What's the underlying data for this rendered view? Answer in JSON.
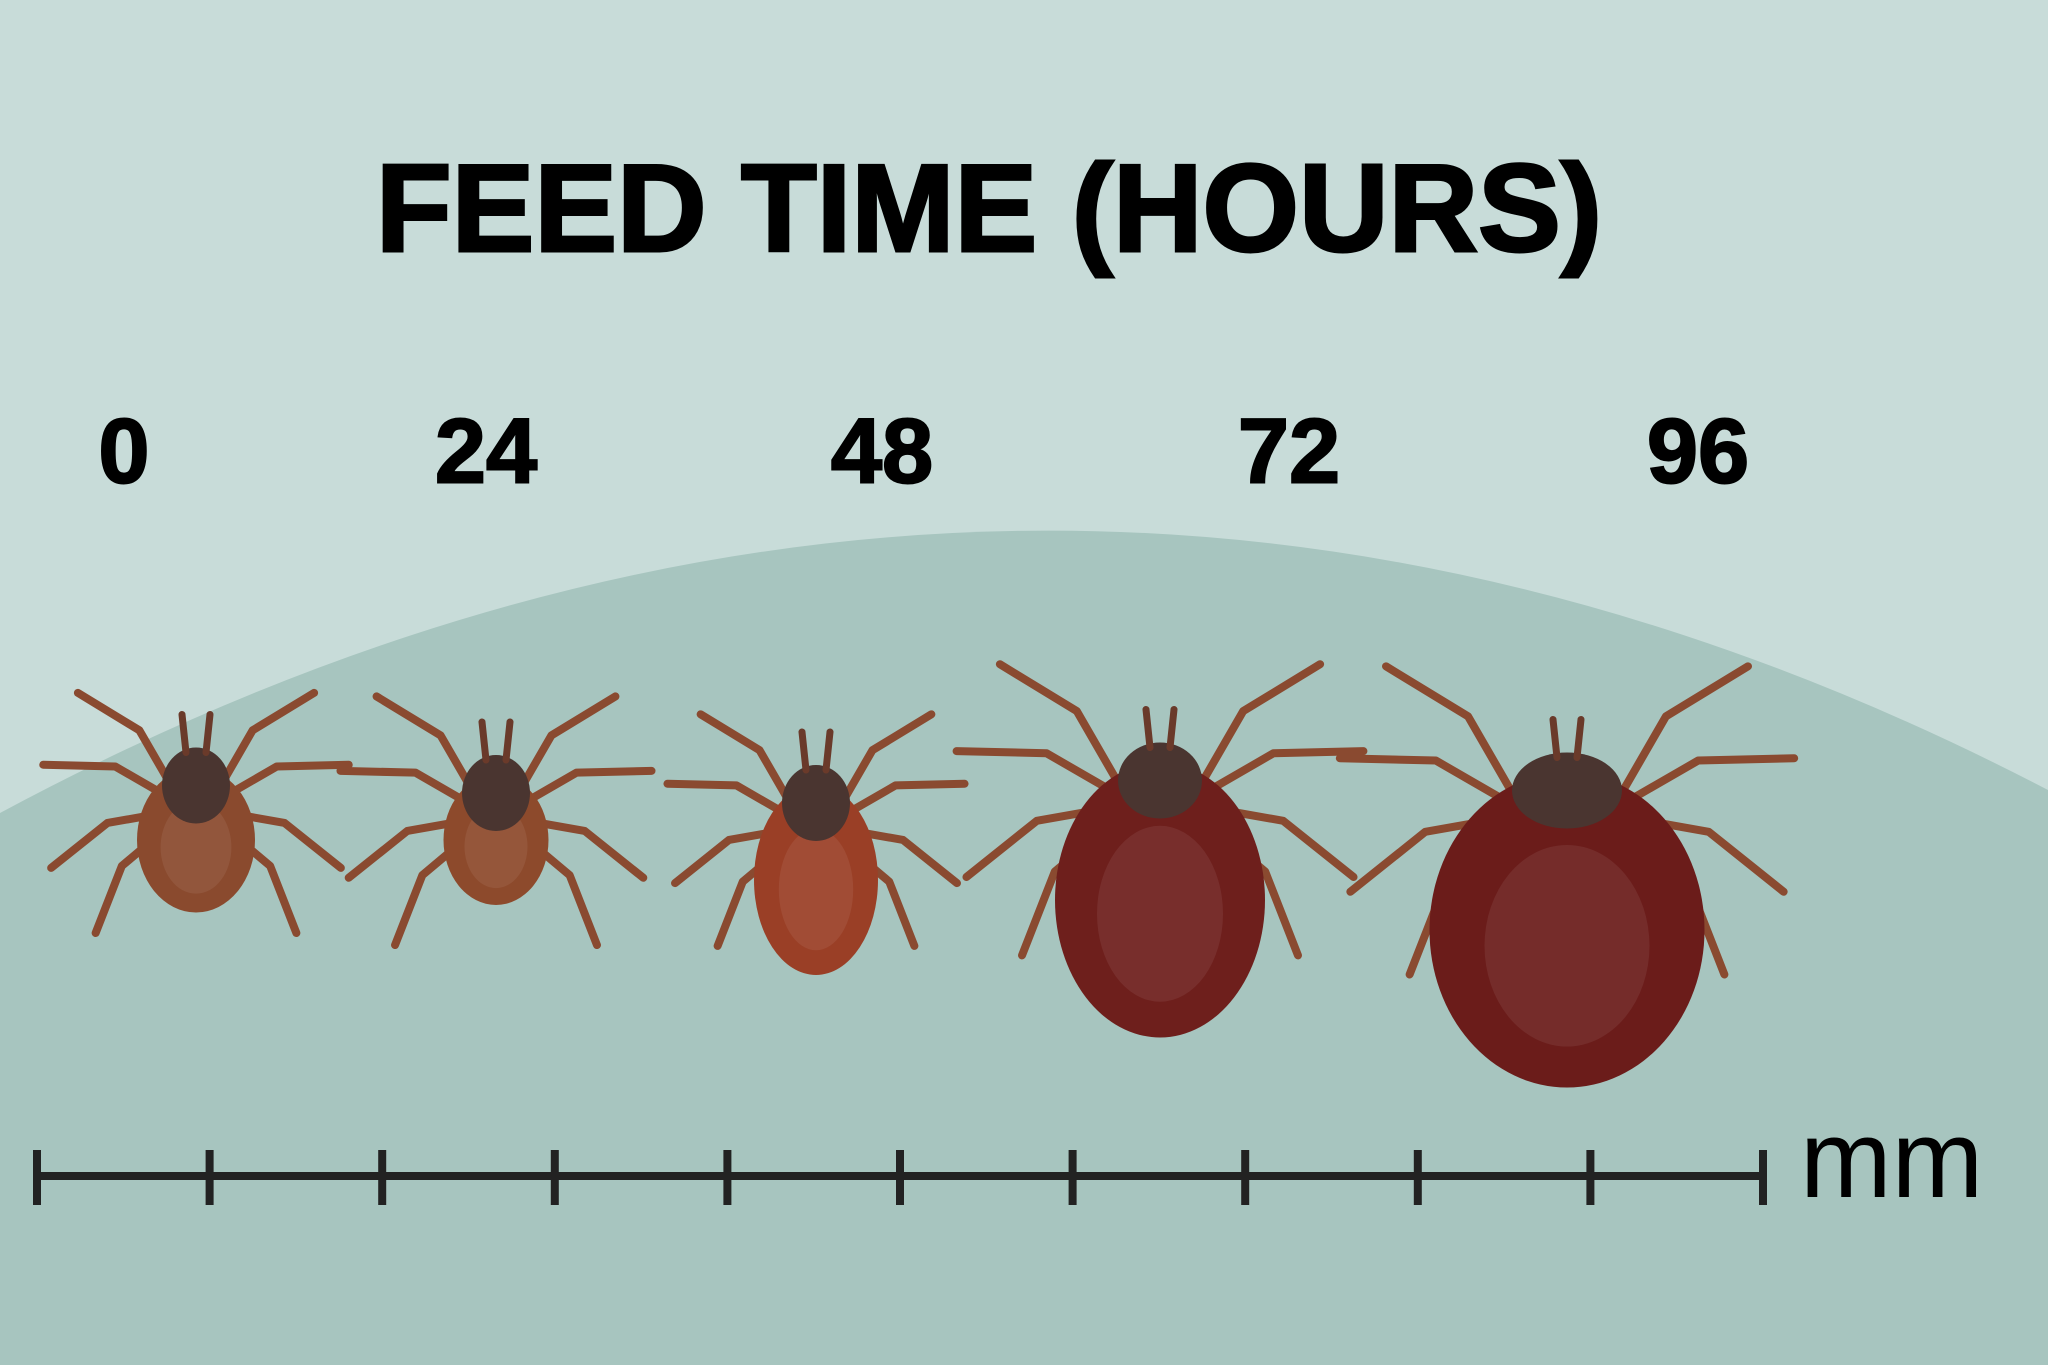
{
  "header": {
    "title": "FEED TIME (HOURS)"
  },
  "time_labels": [
    "0",
    "24",
    "48",
    "72",
    "96"
  ],
  "scale_bar": {
    "unit": "mm"
  }
}
